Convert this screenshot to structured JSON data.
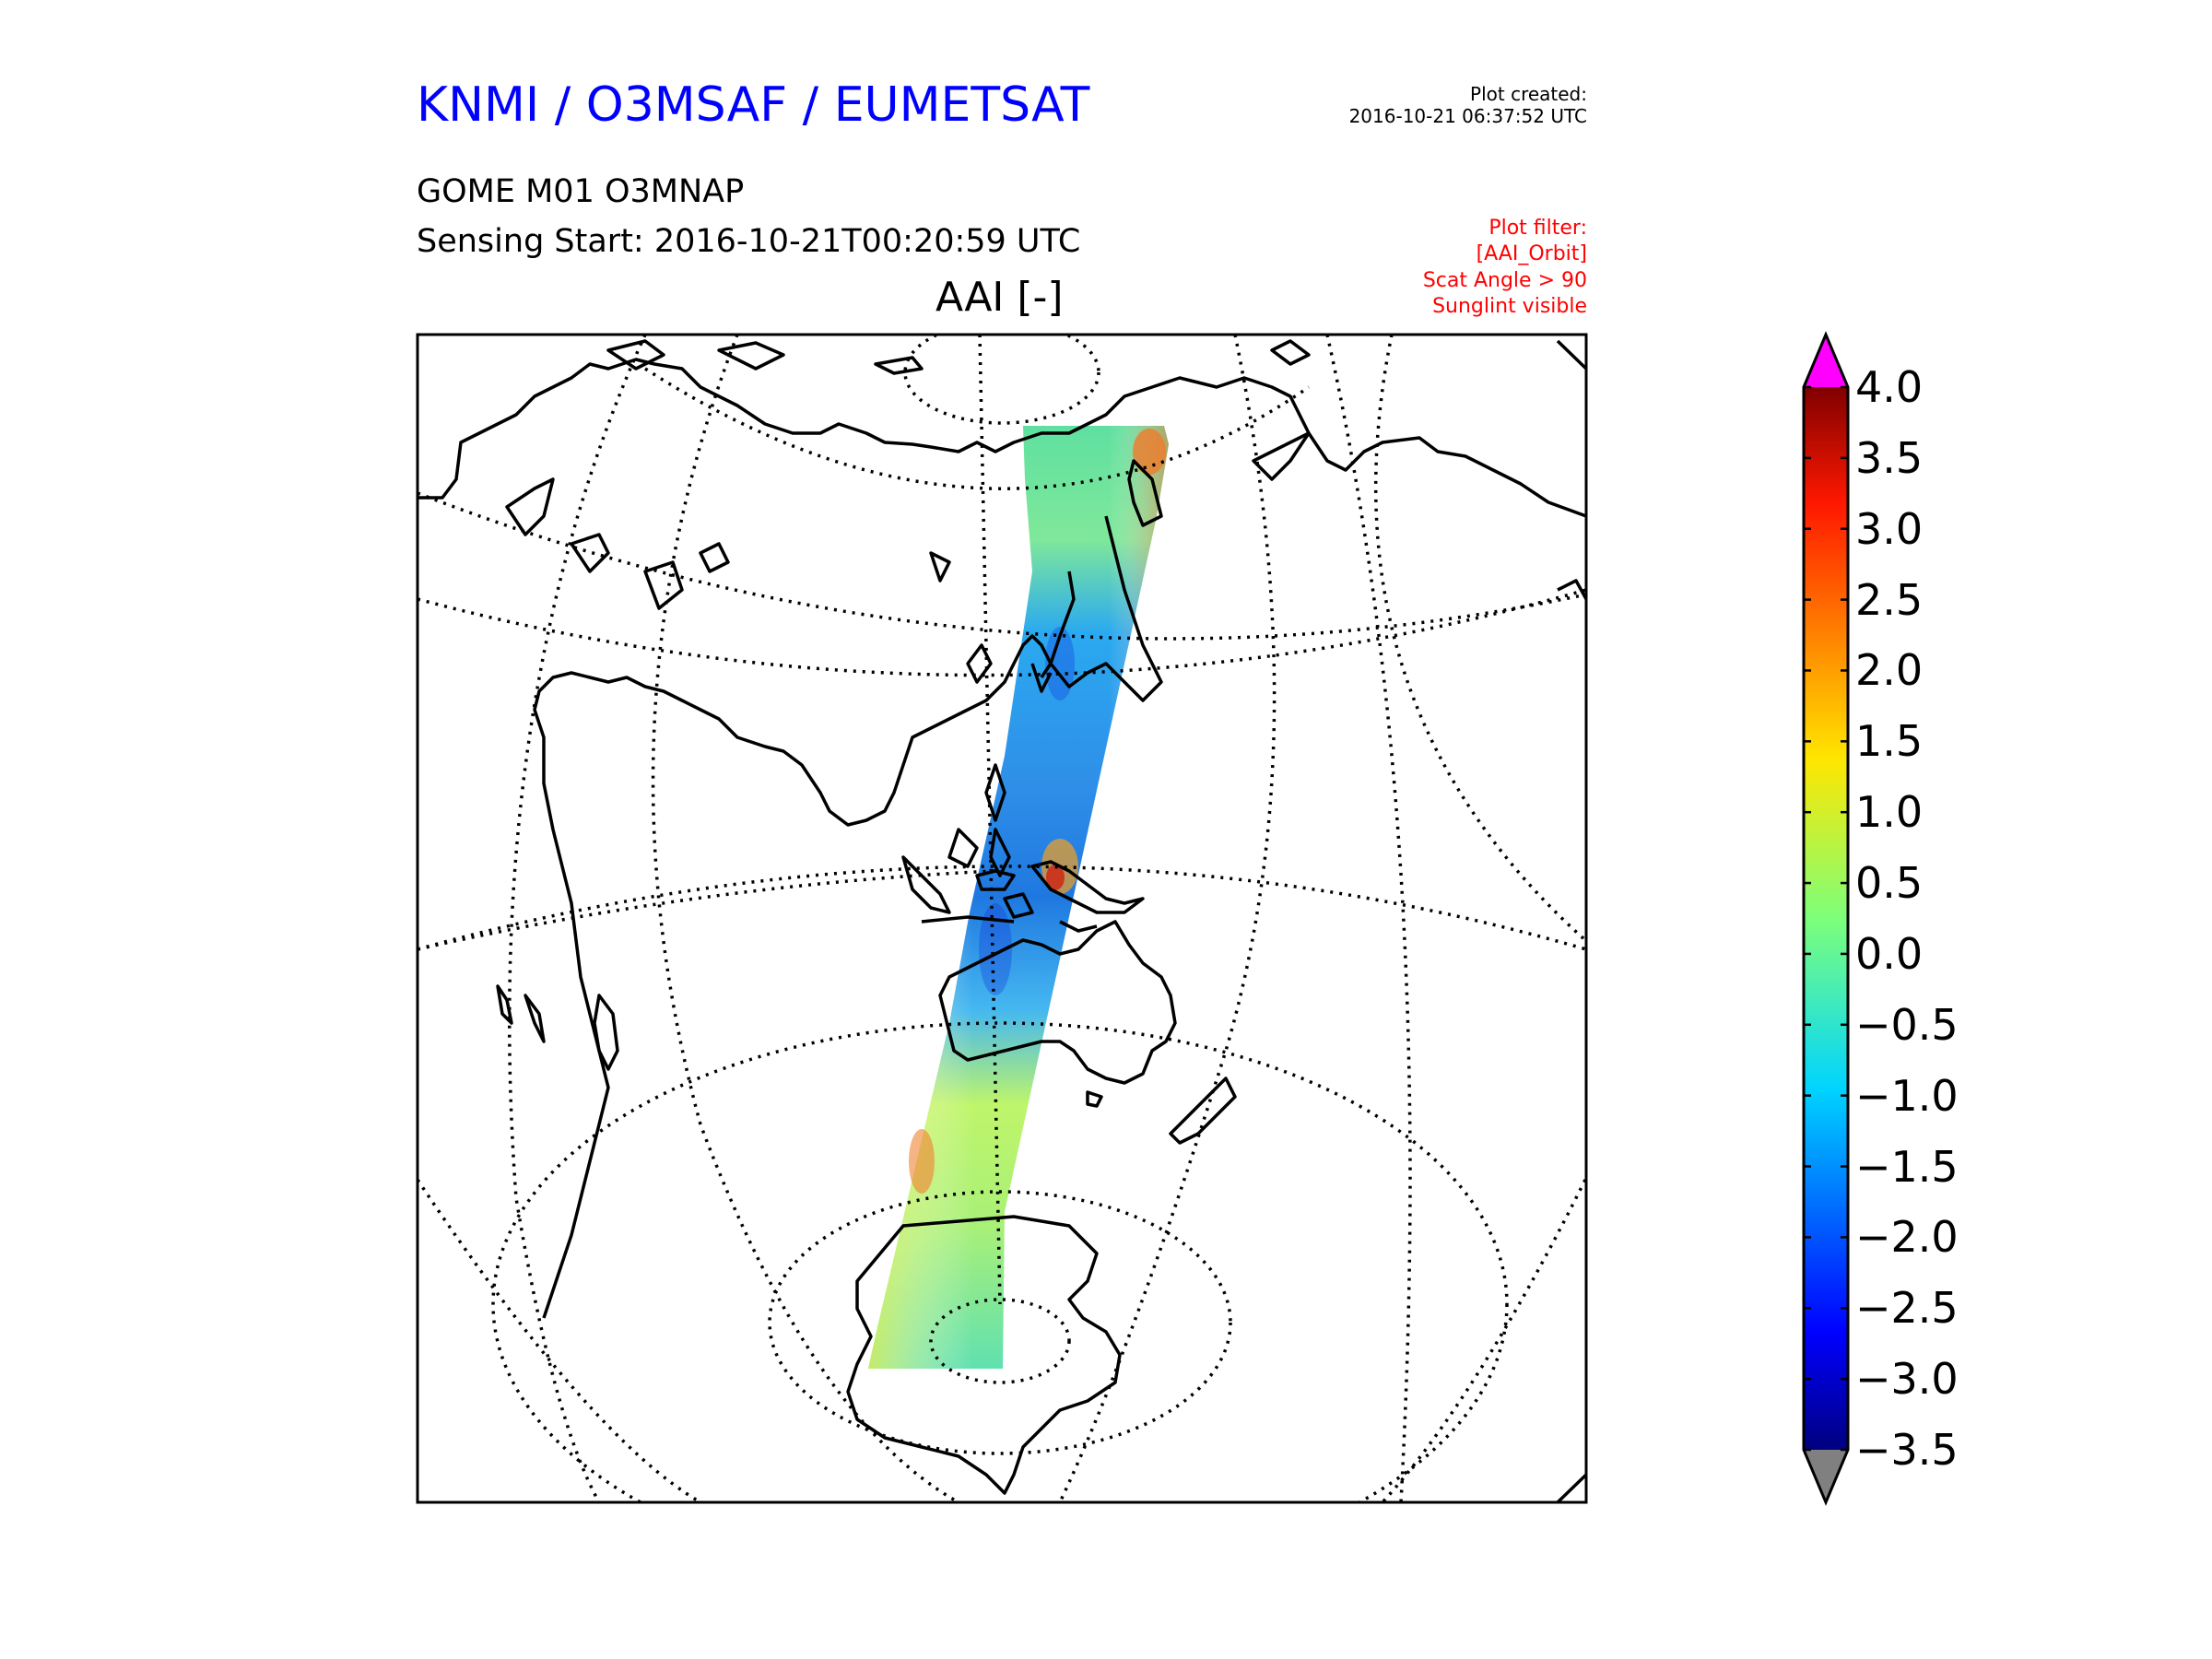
{
  "header": {
    "organization": "KNMI / O3MSAF / EUMETSAT",
    "plot_created_label": "Plot created:",
    "plot_created_value": "2016-10-21 06:37:52 UTC",
    "product": "GOME M01 O3MNAP",
    "sensing_start": "Sensing Start: 2016-10-21T00:20:59 UTC",
    "plot_filter": [
      "Plot filter:",
      "[AAI_Orbit]",
      "Scat Angle > 90",
      "Sunglint visible"
    ]
  },
  "map": {
    "title": "AAI [-]",
    "projection": "orthographic",
    "graticule": "dotted",
    "swath": "single orbit swath, north to south"
  },
  "colorbar": {
    "ticks": [
      "4.0",
      "3.5",
      "3.0",
      "2.5",
      "2.0",
      "1.5",
      "1.0",
      "0.5",
      "0.0",
      "−0.5",
      "−1.0",
      "−1.5",
      "−2.0",
      "−2.5",
      "−3.0",
      "−3.5"
    ],
    "min": -3.5,
    "max": 4.0,
    "over_color": "#ff00ff",
    "under_color": "#808080",
    "colormap": "jet"
  },
  "colors": {
    "title_blue": "#0000ff",
    "filter_red": "#ff0000"
  }
}
